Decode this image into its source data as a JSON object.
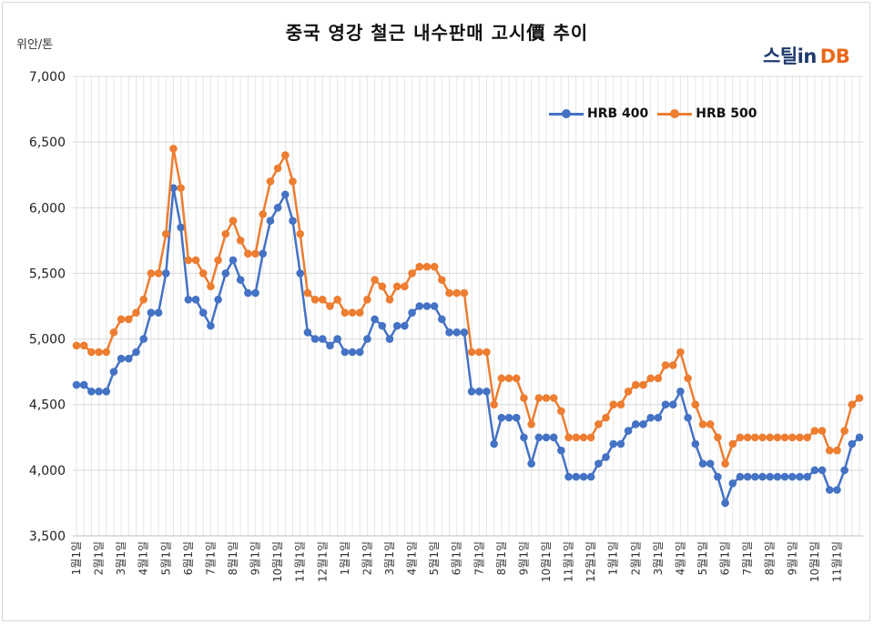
{
  "chart_data": {
    "type": "line",
    "title": "중국 영강 철근 내수판매 고시價 추이",
    "ylabel": "위안/톤",
    "logo": {
      "main": "스틸in",
      "accent": "DB"
    },
    "ylim": [
      3500,
      7000
    ],
    "yticks": [
      "3,500",
      "4,000",
      "4,500",
      "5,000",
      "5,500",
      "6,000",
      "6,500",
      "7,000"
    ],
    "ytick_values": [
      3500,
      4000,
      4500,
      5000,
      5500,
      6000,
      6500,
      7000
    ],
    "xticks": [
      "1월1일",
      "2월1일",
      "3월1일",
      "4월1일",
      "5월1일",
      "6월1일",
      "7월1일",
      "8월1일",
      "9월1일",
      "10월1일",
      "11월1일",
      "12월1일",
      "1월1일",
      "2월1일",
      "3월1일",
      "4월1일",
      "5월1일",
      "6월1일",
      "7월1일",
      "8월1일",
      "9월1일",
      "10월1일",
      "11월1일",
      "12월1일",
      "1월1일",
      "2월1일",
      "3월1일",
      "4월1일",
      "5월1일",
      "6월1일",
      "7월1일",
      "8월1일",
      "9월1일",
      "10월1일",
      "11월1일"
    ],
    "grid": true,
    "legend_position": "top-right",
    "series": [
      {
        "name": "HRB 400",
        "color": "#4472c4",
        "values": [
          4650,
          4650,
          4600,
          4600,
          4600,
          4750,
          4850,
          4850,
          4900,
          5000,
          5200,
          5200,
          5500,
          6150,
          5850,
          5300,
          5300,
          5200,
          5100,
          5300,
          5500,
          5600,
          5450,
          5350,
          5350,
          5650,
          5900,
          6000,
          6100,
          5900,
          5500,
          5050,
          5000,
          5000,
          4950,
          5000,
          4900,
          4900,
          4900,
          5000,
          5150,
          5100,
          5000,
          5100,
          5100,
          5200,
          5250,
          5250,
          5250,
          5150,
          5050,
          5050,
          5050,
          4600,
          4600,
          4600,
          4200,
          4400,
          4400,
          4400,
          4250,
          4050,
          4250,
          4250,
          4250,
          4150,
          3950,
          3950,
          3950,
          3950,
          4050,
          4100,
          4200,
          4200,
          4300,
          4350,
          4350,
          4400,
          4400,
          4500,
          4500,
          4600,
          4400,
          4200,
          4050,
          4050,
          3950,
          3750,
          3900,
          3950,
          3950,
          3950,
          3950,
          3950,
          3950,
          3950,
          3950,
          3950,
          3950,
          4000,
          4000,
          3850,
          3850,
          4000,
          4200,
          4250
        ]
      },
      {
        "name": "HRB 500",
        "color": "#ed7d31",
        "values": [
          4950,
          4950,
          4900,
          4900,
          4900,
          5050,
          5150,
          5150,
          5200,
          5300,
          5500,
          5500,
          5800,
          6450,
          6150,
          5600,
          5600,
          5500,
          5400,
          5600,
          5800,
          5900,
          5750,
          5650,
          5650,
          5950,
          6200,
          6300,
          6400,
          6200,
          5800,
          5350,
          5300,
          5300,
          5250,
          5300,
          5200,
          5200,
          5200,
          5300,
          5450,
          5400,
          5300,
          5400,
          5400,
          5500,
          5550,
          5550,
          5550,
          5450,
          5350,
          5350,
          5350,
          4900,
          4900,
          4900,
          4500,
          4700,
          4700,
          4700,
          4550,
          4350,
          4550,
          4550,
          4550,
          4450,
          4250,
          4250,
          4250,
          4250,
          4350,
          4400,
          4500,
          4500,
          4600,
          4650,
          4650,
          4700,
          4700,
          4800,
          4800,
          4900,
          4700,
          4500,
          4350,
          4350,
          4250,
          4050,
          4200,
          4250,
          4250,
          4250,
          4250,
          4250,
          4250,
          4250,
          4250,
          4250,
          4250,
          4300,
          4300,
          4150,
          4150,
          4300,
          4500,
          4550
        ]
      }
    ]
  }
}
